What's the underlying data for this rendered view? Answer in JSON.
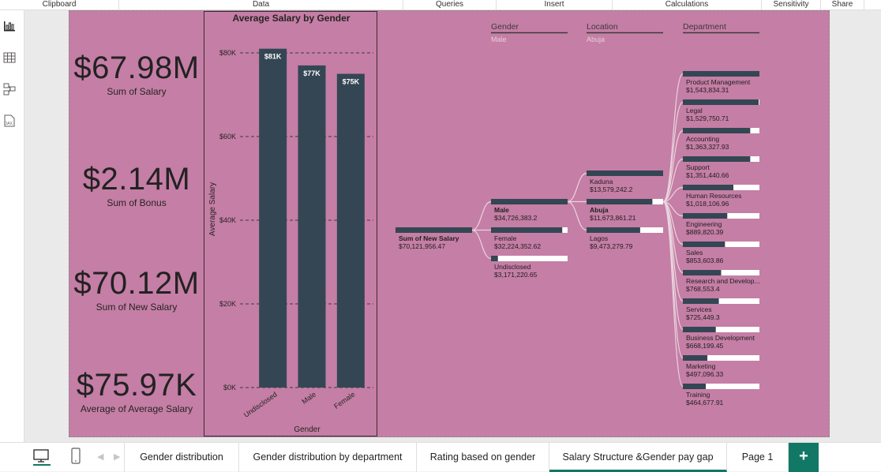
{
  "ribbon": {
    "groups": [
      "Clipboard",
      "Data",
      "Queries",
      "Insert",
      "Calculations",
      "Sensitivity",
      "Share"
    ]
  },
  "sidebar": {
    "items": [
      {
        "name": "report-view",
        "icon": "bar-chart-icon"
      },
      {
        "name": "table-view",
        "icon": "table-grid-icon"
      },
      {
        "name": "model-view",
        "icon": "model-diagram-icon"
      },
      {
        "name": "dax-query-view",
        "icon": "dax-icon"
      }
    ]
  },
  "kpis": [
    {
      "value": "$67.98M",
      "label": "Sum of Salary"
    },
    {
      "value": "$2.14M",
      "label": "Sum of Bonus"
    },
    {
      "value": "$70.12M",
      "label": "Sum of New Salary"
    },
    {
      "value": "$75.97K",
      "label": "Average of Average Salary"
    }
  ],
  "chart_data": {
    "type": "bar",
    "title": "Average Salary by Gender",
    "xlabel": "Gender",
    "ylabel": "Average Salary",
    "categories": [
      "Undisclosed",
      "Male",
      "Female"
    ],
    "values": [
      81000,
      77000,
      75000
    ],
    "data_labels": [
      "$81K",
      "$77K",
      "$75K"
    ],
    "ylim": [
      0,
      80000
    ],
    "yticks": [
      0,
      20000,
      40000,
      60000,
      80000
    ],
    "ytick_labels": [
      "$0K",
      "$20K",
      "$40K",
      "$60K",
      "$80K"
    ],
    "bar_color": "#344654",
    "grid": true
  },
  "decomposition": {
    "headers": [
      {
        "title": "Gender",
        "sub": "Male"
      },
      {
        "title": "Location",
        "sub": "Abuja"
      },
      {
        "title": "Department",
        "sub": ""
      }
    ],
    "root": {
      "label": "Sum of New Salary",
      "value": "$70,121,956.47",
      "fraction": 1.0
    },
    "gender": [
      {
        "label": "Male",
        "value": "$34,726,383.2",
        "fraction": 1.0,
        "selected": true
      },
      {
        "label": "Female",
        "value": "$32,224,352.62",
        "fraction": 0.93,
        "selected": false
      },
      {
        "label": "Undisclosed",
        "value": "$3,171,220.65",
        "fraction": 0.09,
        "selected": false
      }
    ],
    "location": [
      {
        "label": "Kaduna",
        "value": "$13,579,242.2",
        "fraction": 1.0,
        "selected": false
      },
      {
        "label": "Abuja",
        "value": "$11,673,861.21",
        "fraction": 0.86,
        "selected": true
      },
      {
        "label": "Lagos",
        "value": "$9,473,279.79",
        "fraction": 0.7,
        "selected": false
      }
    ],
    "department": [
      {
        "label": "Product Management",
        "value": "$1,543,834.31",
        "fraction": 1.0
      },
      {
        "label": "Legal",
        "value": "$1,529,750.71",
        "fraction": 0.99
      },
      {
        "label": "Accounting",
        "value": "$1,363,327.93",
        "fraction": 0.88
      },
      {
        "label": "Support",
        "value": "$1,351,440.66",
        "fraction": 0.88
      },
      {
        "label": "Human Resources",
        "value": "$1,018,106.96",
        "fraction": 0.66
      },
      {
        "label": "Engineering",
        "value": "$889,820.39",
        "fraction": 0.58
      },
      {
        "label": "Sales",
        "value": "$853,603.86",
        "fraction": 0.55
      },
      {
        "label": "Research and Develop...",
        "value": "$768,553.4",
        "fraction": 0.5
      },
      {
        "label": "Services",
        "value": "$725,449.3",
        "fraction": 0.47
      },
      {
        "label": "Business Development",
        "value": "$668,199.45",
        "fraction": 0.43
      },
      {
        "label": "Marketing",
        "value": "$497,096.33",
        "fraction": 0.32
      },
      {
        "label": "Training",
        "value": "$464,677.91",
        "fraction": 0.3
      }
    ],
    "bar_color": "#344654",
    "track_color": "#ffffff",
    "connector_color": "#e9d4df"
  },
  "tabs": {
    "items": [
      {
        "label": "Gender distribution",
        "active": false
      },
      {
        "label": "Gender distribution by department",
        "active": false
      },
      {
        "label": "Rating based on gender",
        "active": false
      },
      {
        "label": "Salary Structure &Gender pay gap",
        "active": true
      },
      {
        "label": "Page 1",
        "active": false
      }
    ],
    "add_label": "+"
  },
  "colors": {
    "page_bg": "#c57ea5",
    "accent": "#117865"
  }
}
